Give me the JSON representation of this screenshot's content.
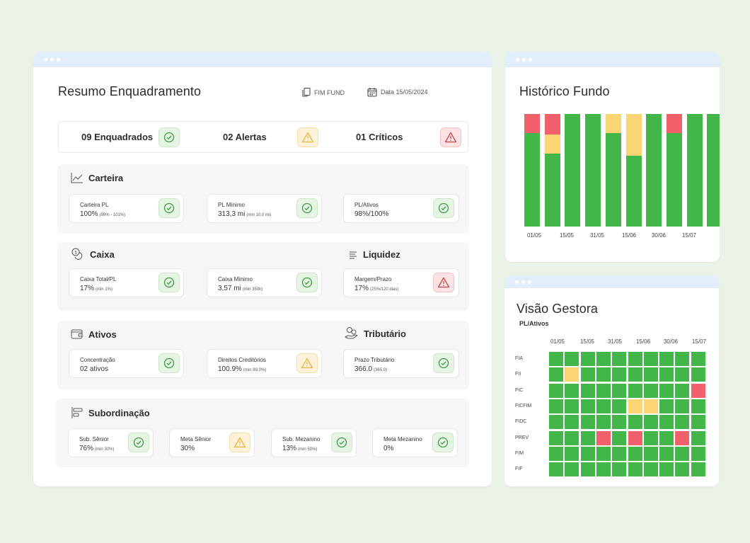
{
  "main": {
    "title": "Resumo Enquadramento",
    "fund_label": "FIM FUND",
    "date_label": "Data 15/05/2024",
    "summary": {
      "enquadrados": "09 Enquadrados",
      "alertas": "02 Alertas",
      "criticos": "01 Críticos"
    },
    "carteira": {
      "title": "Carteira",
      "cards": [
        {
          "label": "Carteira PL",
          "value": "100%",
          "note": "(99% - 101%)",
          "status": "ok"
        },
        {
          "label": "PL Mínimo",
          "value": "313,3 mi",
          "note": "(min 10,0 mi)",
          "status": "ok"
        },
        {
          "label": "PL/Ativos",
          "value": "98%/100%",
          "note": "",
          "status": "ok"
        }
      ]
    },
    "caixa": {
      "title": "Caixa",
      "cards": [
        {
          "label": "Caixa Total/PL",
          "value": "17%",
          "note": "(min 1%)",
          "status": "ok"
        },
        {
          "label": "Caixa Mínimo",
          "value": "3,57 mi",
          "note": "(min 350k)",
          "status": "ok"
        }
      ]
    },
    "liquidez": {
      "title": "Liquidez",
      "cards": [
        {
          "label": "Margem/Prazo",
          "value": "17%",
          "note": "(25%/120 dias)",
          "status": "crit"
        }
      ]
    },
    "ativos": {
      "title": "Ativos",
      "cards": [
        {
          "label": "Concentração",
          "value": "02 ativos",
          "note": "",
          "status": "ok"
        },
        {
          "label": "Direitos Creditórios",
          "value": "100.9%",
          "note": "(min 89.0%)",
          "status": "warn"
        }
      ]
    },
    "tributario": {
      "title": "Tributário",
      "cards": [
        {
          "label": "Prazo Tributário",
          "value": "366.0",
          "note": "(365.0)",
          "status": "ok"
        }
      ]
    },
    "subordinacao": {
      "title": "Subordinação",
      "cards": [
        {
          "label": "Sub. Sênior",
          "value": "76%",
          "note": "(min 30%)",
          "status": "ok"
        },
        {
          "label": "Meta Sênior",
          "value": "30%",
          "note": "",
          "status": "warn"
        },
        {
          "label": "Sub. Mezanino",
          "value": "13%",
          "note": "(min 50%)",
          "status": "ok"
        },
        {
          "label": "Meta Mezanino",
          "value": "0%",
          "note": "",
          "status": "ok"
        }
      ]
    }
  },
  "historico": {
    "title": "Histórico Fundo",
    "x_labels": [
      "01/05",
      "15/05",
      "31/05",
      "15/06",
      "30/06",
      "15/07"
    ]
  },
  "visao": {
    "title": "Visão Gestora",
    "subtitle": "PL/Ativos",
    "col_labels": [
      "01/05",
      "15/05",
      "31/05",
      "15/06",
      "30/06",
      "15/07"
    ],
    "row_labels": [
      "FIA",
      "FII",
      "FIC",
      "FICFIM",
      "FIDC",
      "PREV",
      "FIM",
      "FIF"
    ]
  },
  "colors": {
    "green": "#43b649",
    "yellow": "#fbd473",
    "red": "#f0616c",
    "accent_bar": "#e3eefb"
  },
  "chart_data": [
    {
      "type": "bar",
      "title": "Histórico Fundo",
      "stacked": true,
      "categories": [
        "01/05",
        "",
        "15/05",
        "",
        "31/05",
        "",
        "15/06",
        "",
        "30/06",
        ""
      ],
      "tick_labels": [
        "01/05",
        "15/05",
        "31/05",
        "15/06",
        "30/06",
        "15/07"
      ],
      "series": [
        {
          "color": "#43b649",
          "values": [
            83,
            65,
            100,
            100,
            83,
            63,
            100,
            83,
            100,
            100
          ]
        },
        {
          "color": "#fbd473",
          "values": [
            0,
            17,
            0,
            0,
            17,
            37,
            0,
            0,
            0,
            0
          ]
        },
        {
          "color": "#f0616c",
          "values": [
            17,
            18,
            0,
            0,
            0,
            0,
            0,
            17,
            0,
            0
          ]
        }
      ],
      "ylim": [
        0,
        100
      ]
    },
    {
      "type": "heatmap",
      "title": "Visão Gestora",
      "subtitle": "PL/Ativos",
      "rows": [
        "FIA",
        "FII",
        "FIC",
        "FICFIM",
        "FIDC",
        "PREV",
        "FIM",
        "FIF"
      ],
      "col_tick_labels": [
        "01/05",
        "15/05",
        "31/05",
        "15/06",
        "30/06",
        "15/07"
      ],
      "n_cols": 10,
      "cells": [
        [
          "g",
          "g",
          "g",
          "g",
          "g",
          "g",
          "g",
          "g",
          "g",
          "g"
        ],
        [
          "g",
          "y",
          "g",
          "g",
          "g",
          "g",
          "g",
          "g",
          "g",
          "g"
        ],
        [
          "g",
          "g",
          "g",
          "g",
          "g",
          "g",
          "g",
          "g",
          "g",
          "r"
        ],
        [
          "g",
          "g",
          "g",
          "g",
          "g",
          "y",
          "y",
          "g",
          "g",
          "g"
        ],
        [
          "g",
          "g",
          "g",
          "g",
          "g",
          "g",
          "g",
          "g",
          "g",
          "g"
        ],
        [
          "g",
          "g",
          "g",
          "r",
          "g",
          "r",
          "g",
          "g",
          "r",
          "g"
        ],
        [
          "g",
          "g",
          "g",
          "g",
          "g",
          "g",
          "g",
          "g",
          "g",
          "g"
        ],
        [
          "g",
          "g",
          "g",
          "g",
          "g",
          "g",
          "g",
          "g",
          "g",
          "g"
        ]
      ]
    }
  ]
}
